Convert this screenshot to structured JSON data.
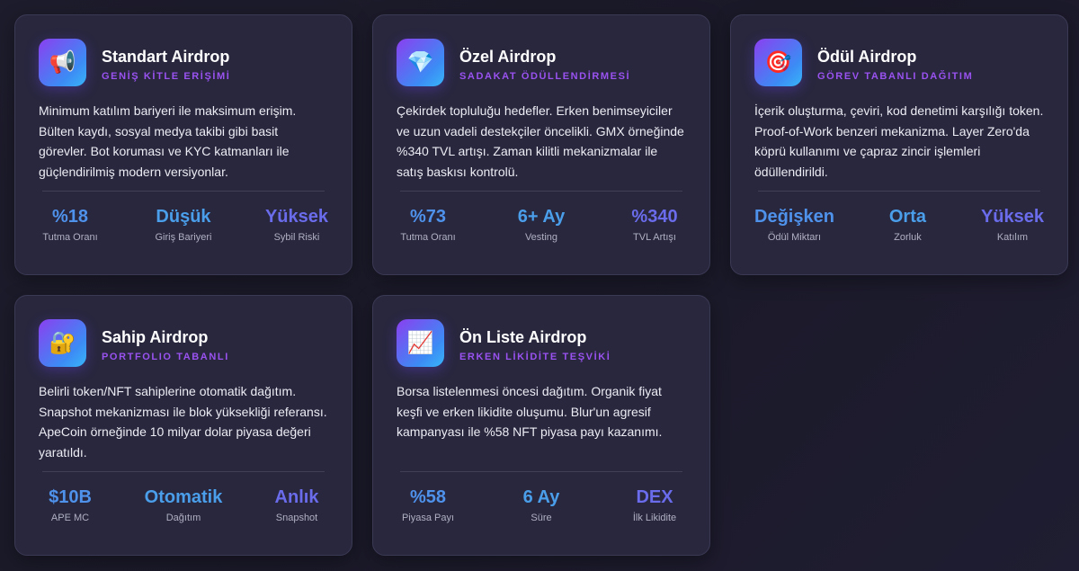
{
  "cards": [
    {
      "icon": "megaphone-icon",
      "glyph": "📢",
      "title": "Standart Airdrop",
      "subtitle": "GENİŞ KİTLE ERİŞİMİ",
      "description": "Minimum katılım bariyeri ile maksimum erişim. Bülten kaydı, sosyal medya takibi gibi basit görevler. Bot koruması ve KYC katmanları ile güçlendirilmiş modern versiyonlar.",
      "stats": [
        {
          "value": "%18",
          "label": "Tutma Oranı"
        },
        {
          "value": "Düşük",
          "label": "Giriş Bariyeri"
        },
        {
          "value": "Yüksek",
          "label": "Sybil Riski"
        }
      ]
    },
    {
      "icon": "diamond-icon",
      "glyph": "💎",
      "title": "Özel Airdrop",
      "subtitle": "SADAKAT ÖDÜLLENDİRMESİ",
      "description": "Çekirdek topluluğu hedefler. Erken benimseyiciler ve uzun vadeli destekçiler öncelikli. GMX örneğinde %340 TVL artışı. Zaman kilitli mekanizmalar ile satış baskısı kontrolü.",
      "stats": [
        {
          "value": "%73",
          "label": "Tutma Oranı"
        },
        {
          "value": "6+ Ay",
          "label": "Vesting"
        },
        {
          "value": "%340",
          "label": "TVL Artışı"
        }
      ]
    },
    {
      "icon": "target-icon",
      "glyph": "🎯",
      "title": "Ödül Airdrop",
      "subtitle": "GÖREV TABANLI DAĞITIM",
      "description": "İçerik oluşturma, çeviri, kod denetimi karşılığı token. Proof-of-Work benzeri mekanizma. Layer Zero'da köprü kullanımı ve çapraz zincir işlemleri ödüllendirildi.",
      "stats": [
        {
          "value": "Değişken",
          "label": "Ödül Miktarı"
        },
        {
          "value": "Orta",
          "label": "Zorluk"
        },
        {
          "value": "Yüksek",
          "label": "Katılım"
        }
      ]
    },
    {
      "icon": "lock-icon",
      "glyph": "🔐",
      "title": "Sahip Airdrop",
      "subtitle": "PORTFOLIO TABANLI",
      "description": "Belirli token/NFT sahiplerine otomatik dağıtım. Snapshot mekanizması ile blok yüksekliği referansı. ApeCoin örneğinde 10 milyar dolar piyasa değeri yaratıldı.",
      "stats": [
        {
          "value": "$10B",
          "label": "APE MC"
        },
        {
          "value": "Otomatik",
          "label": "Dağıtım"
        },
        {
          "value": "Anlık",
          "label": "Snapshot"
        }
      ]
    },
    {
      "icon": "chart-up-icon",
      "glyph": "📈",
      "title": "Ön Liste Airdrop",
      "subtitle": "ERKEN LİKİDİTE TEŞVİKİ",
      "description": "Borsa listelenmesi öncesi dağıtım. Organik fiyat keşfi ve erken likidite oluşumu. Blur'un agresif kampanyası ile %58 NFT piyasa payı kazanımı.",
      "stats": [
        {
          "value": "%58",
          "label": "Piyasa Payı"
        },
        {
          "value": "6 Ay",
          "label": "Süre"
        },
        {
          "value": "DEX",
          "label": "İlk Likidite"
        }
      ]
    }
  ]
}
